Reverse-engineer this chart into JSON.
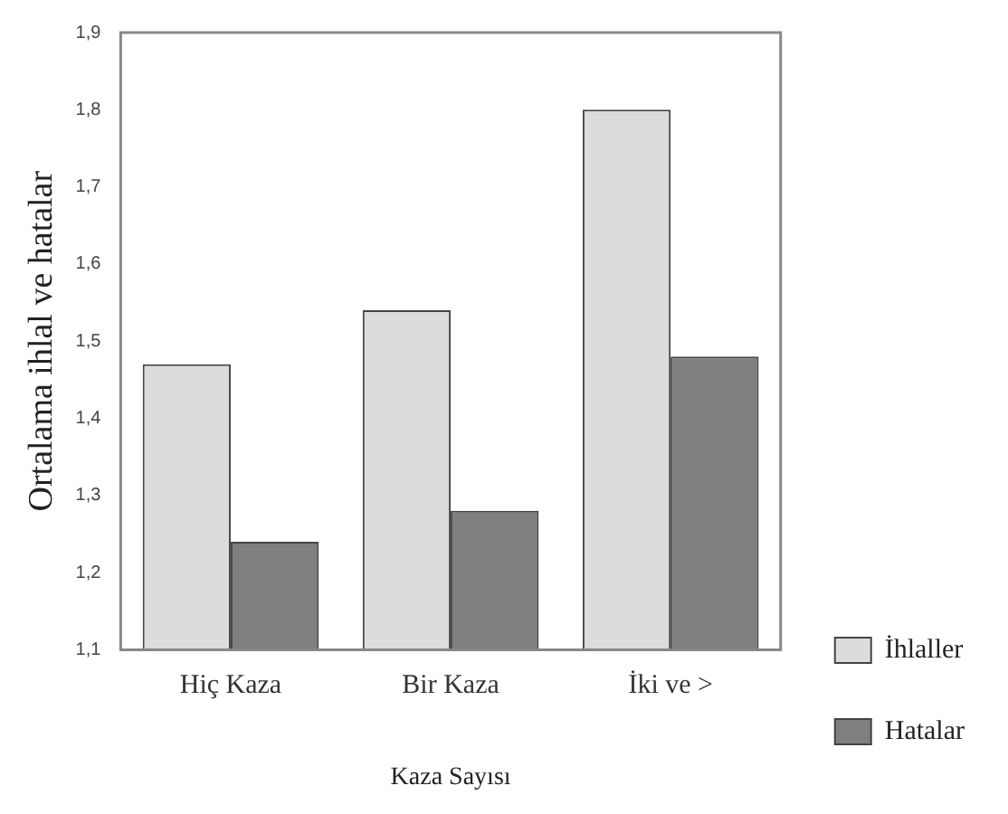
{
  "chart_data": {
    "type": "bar",
    "xlabel": "Kaza Sayısı",
    "ylabel": "Ortalama ihlal ve hatalar",
    "categories": [
      "Hiç Kaza",
      "Bir Kaza",
      "İki ve >"
    ],
    "series": [
      {
        "name": "İhlaller",
        "color": "#dcdcdc",
        "values": [
          1.47,
          1.54,
          1.8
        ]
      },
      {
        "name": "Hatalar",
        "color": "#7f7f7f",
        "values": [
          1.24,
          1.28,
          1.48
        ]
      }
    ],
    "ylim": [
      1.1,
      1.9
    ],
    "yticks": [
      {
        "value": 1.1,
        "label": "1,1"
      },
      {
        "value": 1.2,
        "label": "1,2"
      },
      {
        "value": 1.3,
        "label": "1,3"
      },
      {
        "value": 1.4,
        "label": "1,4"
      },
      {
        "value": 1.5,
        "label": "1,5"
      },
      {
        "value": 1.6,
        "label": "1,6"
      },
      {
        "value": 1.7,
        "label": "1,7"
      },
      {
        "value": 1.8,
        "label": "1,8"
      },
      {
        "value": 1.9,
        "label": "1,9"
      }
    ],
    "grid": false,
    "legend": "bottom right"
  }
}
